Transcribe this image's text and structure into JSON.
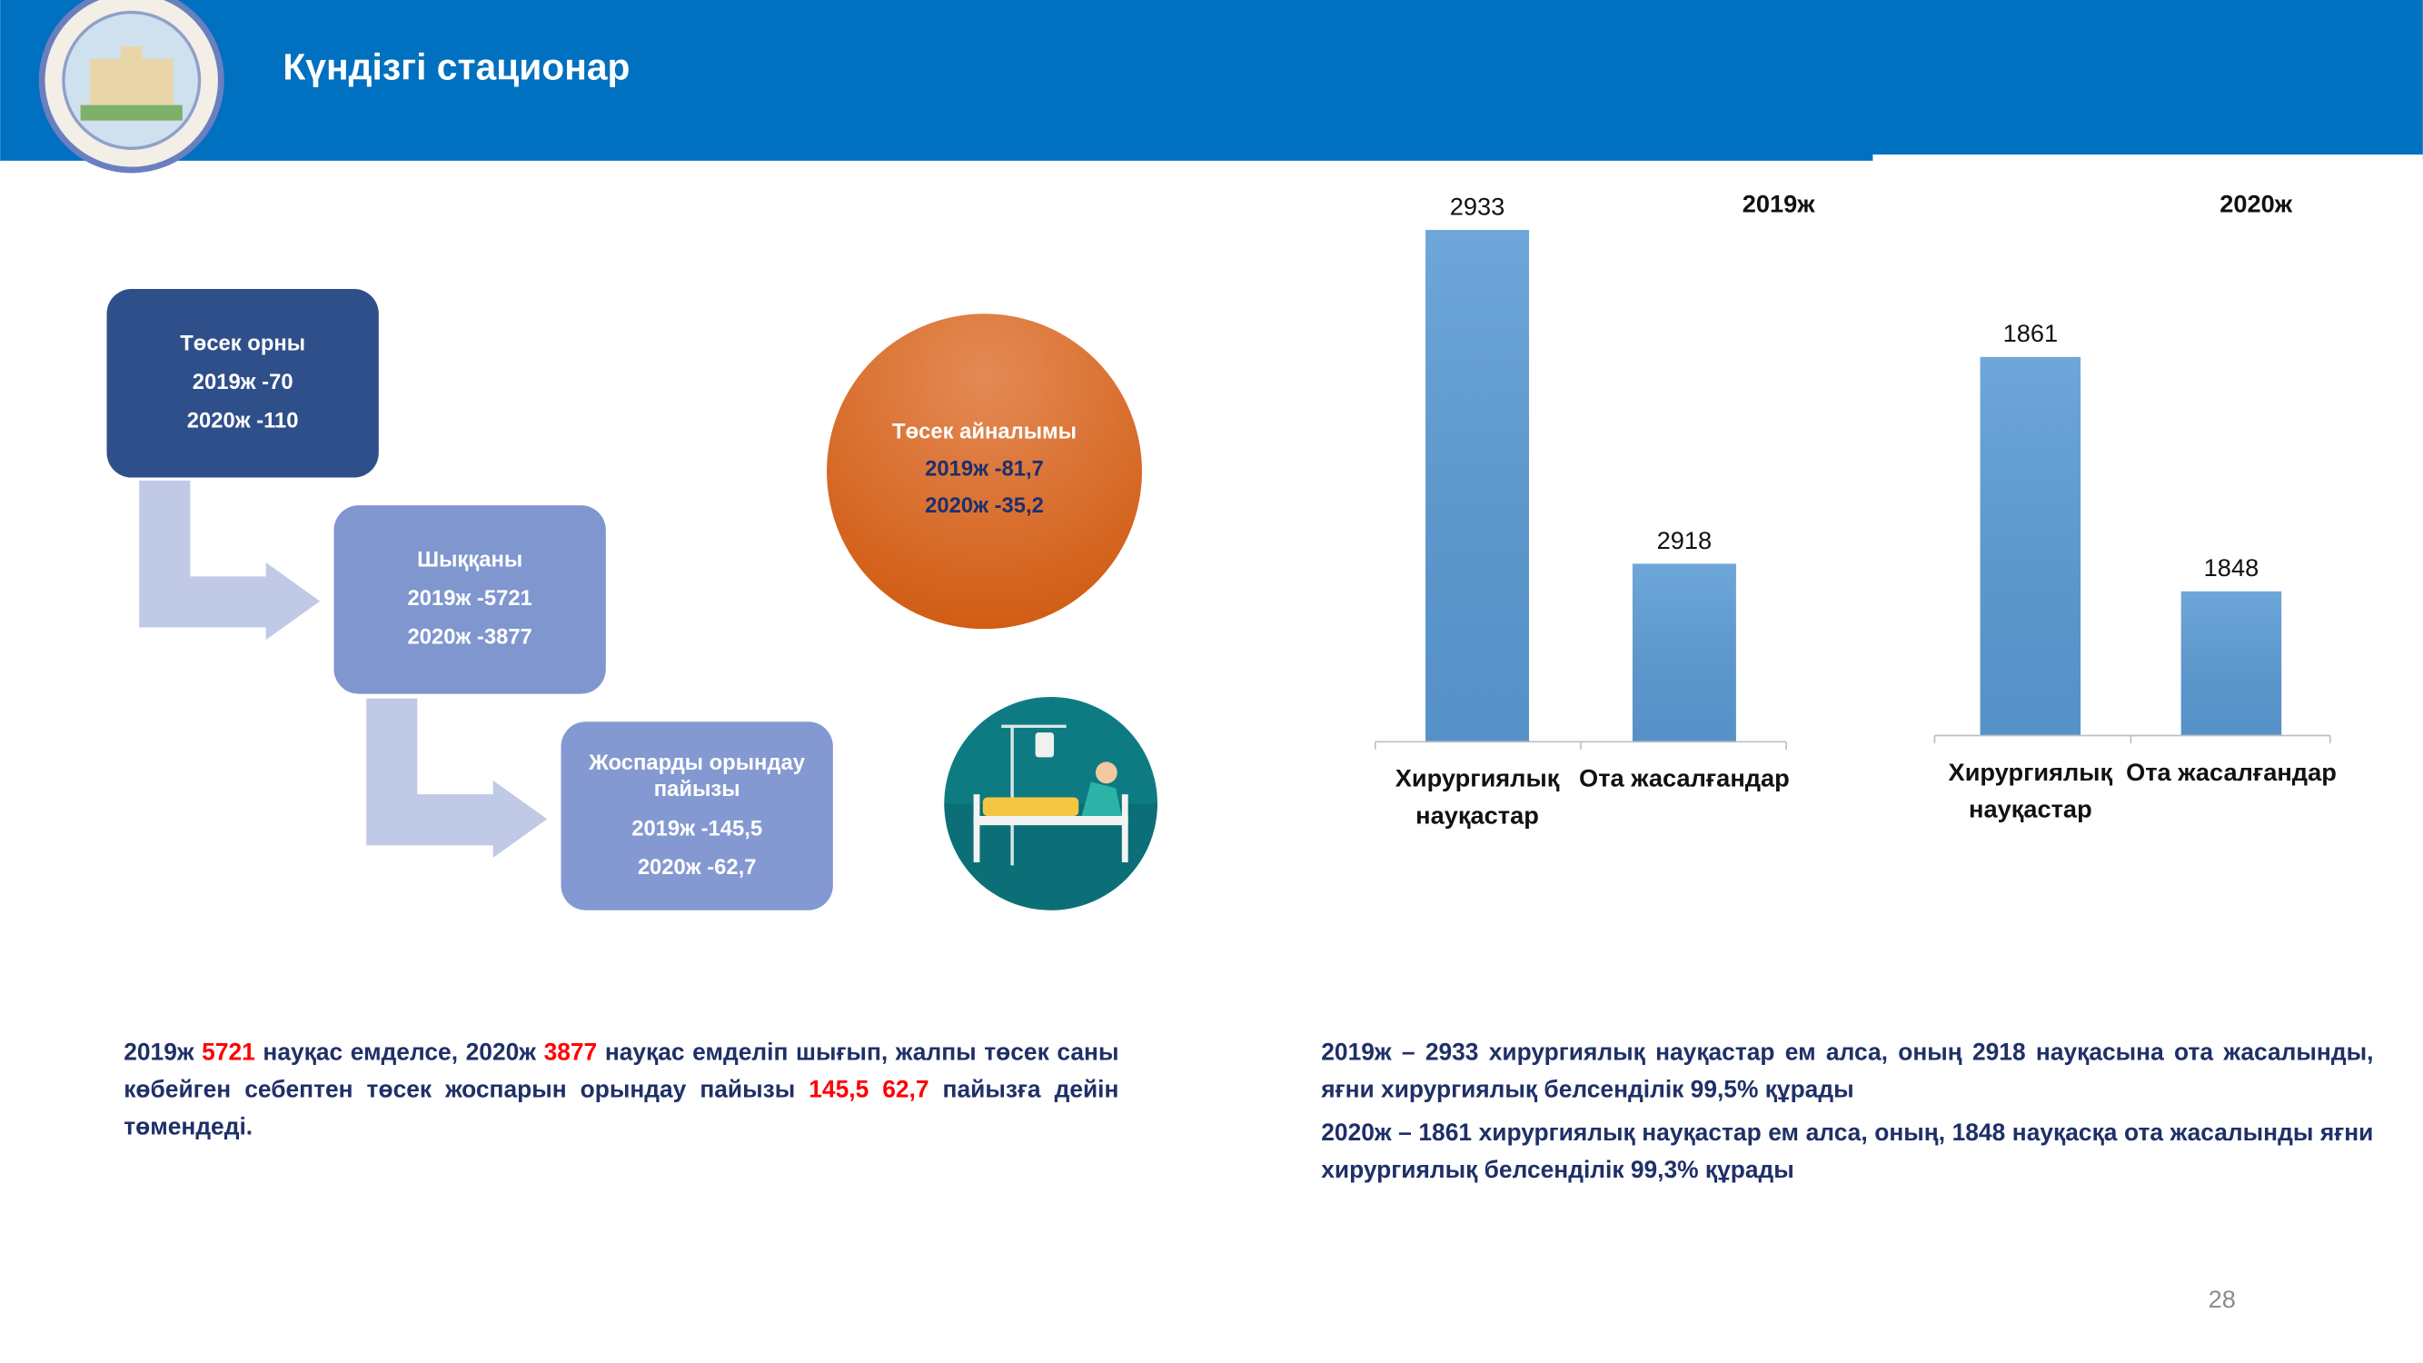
{
  "header": {
    "title": "Күндізгі стационар"
  },
  "flow": [
    {
      "title": "Төсек орны",
      "lines": [
        "2019ж -70",
        "2020ж -110"
      ]
    },
    {
      "title": "Шыққаны",
      "lines": [
        "2019ж -5721",
        "2020ж -3877"
      ]
    },
    {
      "title": "Жоспарды орындау пайызы",
      "lines": [
        "2019ж -145,5",
        "2020ж -62,7"
      ]
    }
  ],
  "turnover": {
    "title": "Төсек айналымы",
    "lines": [
      "2019ж -81,7",
      "2020ж -35,2"
    ]
  },
  "chart_data": [
    {
      "type": "bar",
      "title": "2019ж",
      "categories": [
        "Хирургиялық науқастар",
        "Ота жасалғандар"
      ],
      "values": [
        2933,
        2918
      ],
      "color": "#5b9bd5",
      "ylim": [
        2910,
        2935
      ]
    },
    {
      "type": "bar",
      "title": "2020ж",
      "categories": [
        "Хирургиялық науқастар",
        "Ота жасалғандар"
      ],
      "values": [
        1861,
        1848
      ],
      "color": "#5b9bd5",
      "ylim": [
        1840,
        1870
      ]
    }
  ],
  "notes": {
    "left": [
      {
        "text": "2019ж ",
        "highlight": false
      },
      {
        "text": "5721",
        "highlight": true
      },
      {
        "text": " науқас емделсе, 2020ж ",
        "highlight": false
      },
      {
        "text": "3877",
        "highlight": true
      },
      {
        "text": " науқас емделіп шығып, жалпы төсек саны көбейген себептен төсек жоспарын орындау пайызы ",
        "highlight": false
      },
      {
        "text": "145,5 62,7",
        "highlight": true
      },
      {
        "text": " пайызға дейін төмендеді.",
        "highlight": false
      }
    ],
    "right": [
      "2019ж – 2933 хирургиялық науқастар ем алса, оның 2918 науқасына ота жасалынды, яғни хирургиялық белсенділік 99,5% құрады",
      "2020ж – 1861 хирургиялық науқастар ем алса, оның, 1848 науқасқа ота жасалынды яғни хирургиялық белсенділік 99,3% құрады"
    ]
  },
  "page_number": "28"
}
